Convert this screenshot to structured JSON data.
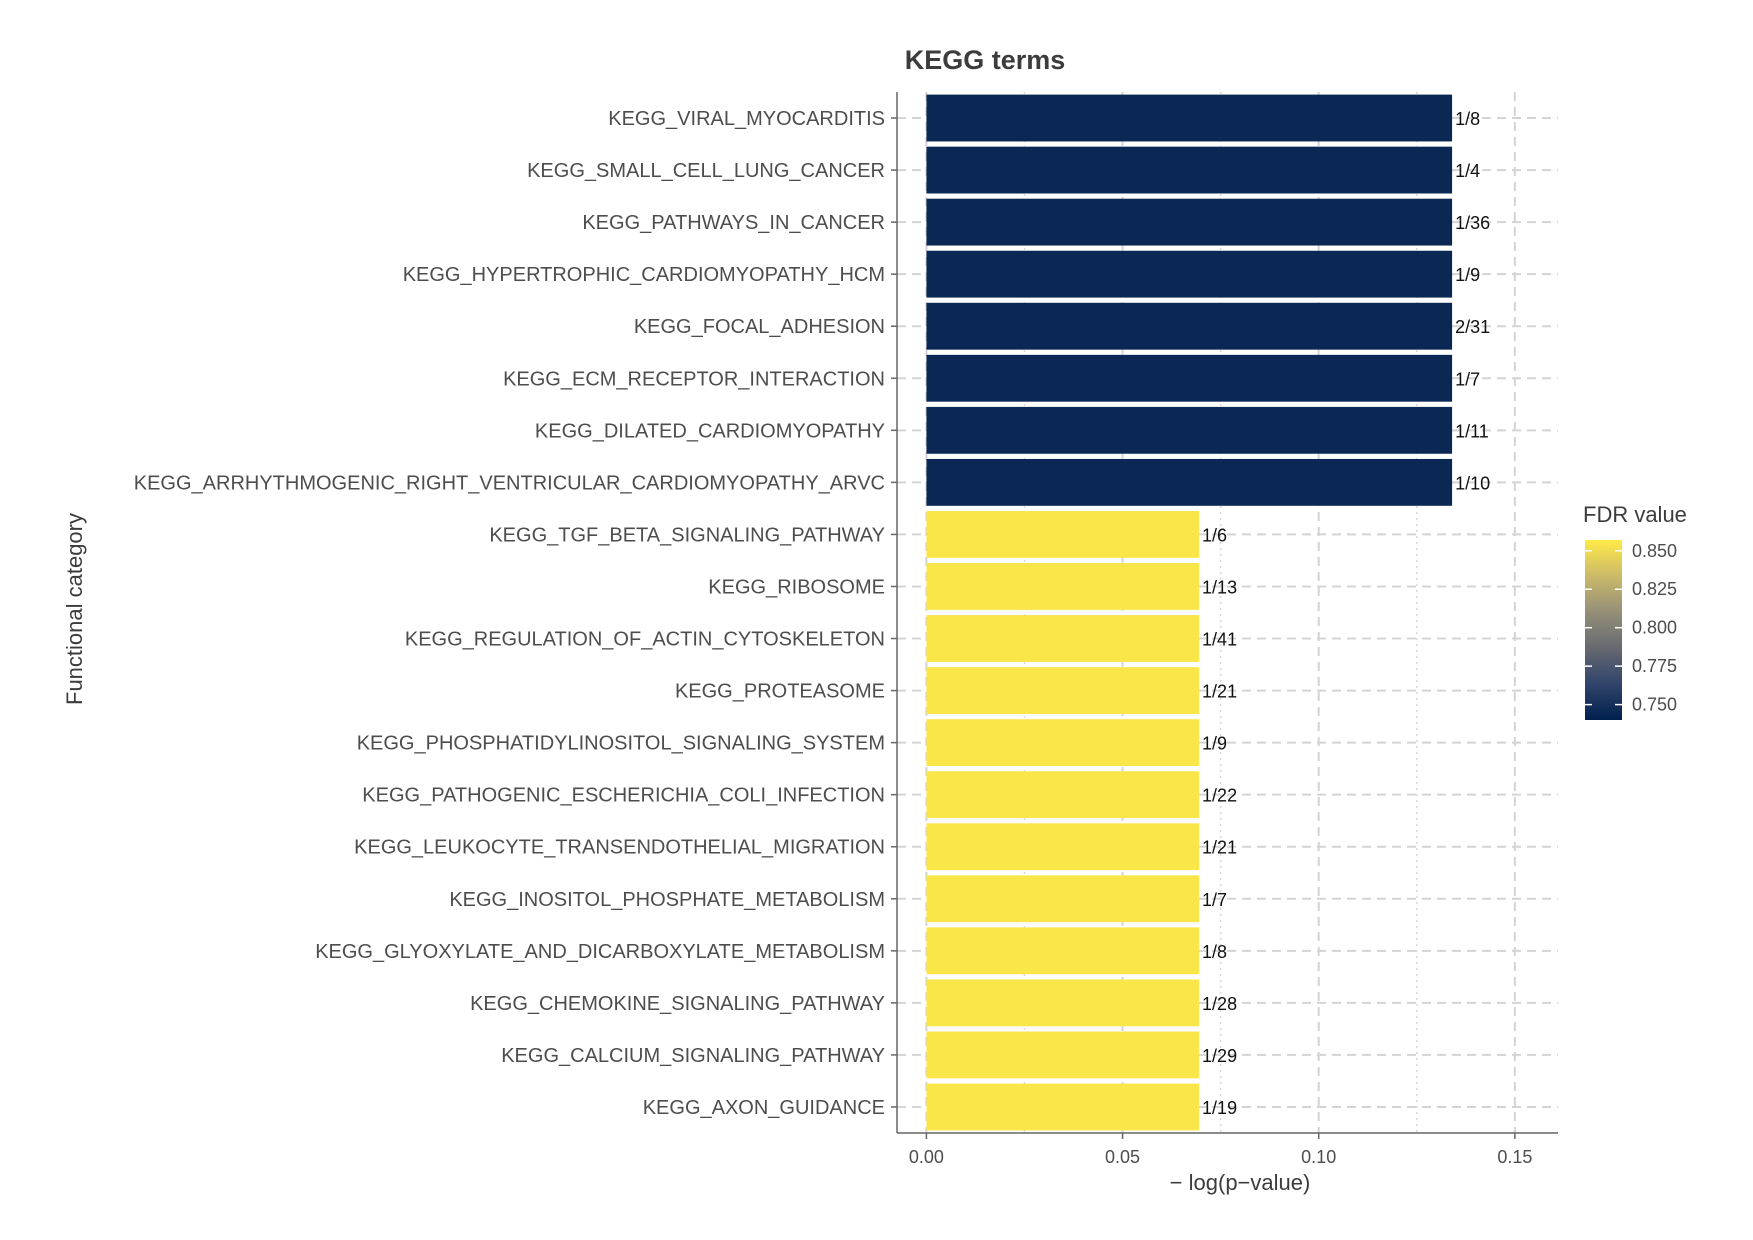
{
  "chart_data": {
    "type": "bar",
    "orientation": "horizontal",
    "title": "KEGG terms",
    "xlabel": "− log(p−value)",
    "ylabel": "Functional category",
    "xlim": [
      -0.0075,
      0.161
    ],
    "xticks": [
      0.0,
      0.05,
      0.1,
      0.15
    ],
    "xtick_labels": [
      "0.00",
      "0.05",
      "0.10",
      "0.15"
    ],
    "grid": true,
    "categories": [
      "KEGG_VIRAL_MYOCARDITIS",
      "KEGG_SMALL_CELL_LUNG_CANCER",
      "KEGG_PATHWAYS_IN_CANCER",
      "KEGG_HYPERTROPHIC_CARDIOMYOPATHY_HCM",
      "KEGG_FOCAL_ADHESION",
      "KEGG_ECM_RECEPTOR_INTERACTION",
      "KEGG_DILATED_CARDIOMYOPATHY",
      "KEGG_ARRHYTHMOGENIC_RIGHT_VENTRICULAR_CARDIOMYOPATHY_ARVC",
      "KEGG_TGF_BETA_SIGNALING_PATHWAY",
      "KEGG_RIBOSOME",
      "KEGG_REGULATION_OF_ACTIN_CYTOSKELETON",
      "KEGG_PROTEASOME",
      "KEGG_PHOSPHATIDYLINOSITOL_SIGNALING_SYSTEM",
      "KEGG_PATHOGENIC_ESCHERICHIA_COLI_INFECTION",
      "KEGG_LEUKOCYTE_TRANSENDOTHELIAL_MIGRATION",
      "KEGG_INOSITOL_PHOSPHATE_METABOLISM",
      "KEGG_GLYOXYLATE_AND_DICARBOXYLATE_METABOLISM",
      "KEGG_CHEMOKINE_SIGNALING_PATHWAY",
      "KEGG_CALCIUM_SIGNALING_PATHWAY",
      "KEGG_AXON_GUIDANCE"
    ],
    "values": [
      0.134,
      0.134,
      0.134,
      0.134,
      0.134,
      0.134,
      0.134,
      0.134,
      0.0695,
      0.0695,
      0.0695,
      0.0695,
      0.0695,
      0.0695,
      0.0695,
      0.0695,
      0.0695,
      0.0695,
      0.0695,
      0.0695
    ],
    "fdr": [
      0.745,
      0.745,
      0.745,
      0.745,
      0.745,
      0.745,
      0.745,
      0.745,
      0.855,
      0.855,
      0.855,
      0.855,
      0.855,
      0.855,
      0.855,
      0.855,
      0.855,
      0.855,
      0.855,
      0.855
    ],
    "bar_labels": [
      "1/8",
      "1/4",
      "1/36",
      "1/9",
      "2/31",
      "1/7",
      "1/11",
      "1/10",
      "1/6",
      "1/13",
      "1/41",
      "1/21",
      "1/9",
      "1/22",
      "1/21",
      "1/7",
      "1/8",
      "1/28",
      "1/29",
      "1/19"
    ],
    "legend": {
      "title": "FDR value",
      "placement": "right",
      "range": [
        0.74,
        0.857
      ],
      "ticks": [
        0.85,
        0.825,
        0.8,
        0.775,
        0.75
      ],
      "tick_labels": [
        "0.850",
        "0.825",
        "0.800",
        "0.775",
        "0.750"
      ],
      "colors": [
        "#00204d",
        "#31446b",
        "#666970",
        "#958f78",
        "#cbba69",
        "#ffea46"
      ]
    }
  }
}
